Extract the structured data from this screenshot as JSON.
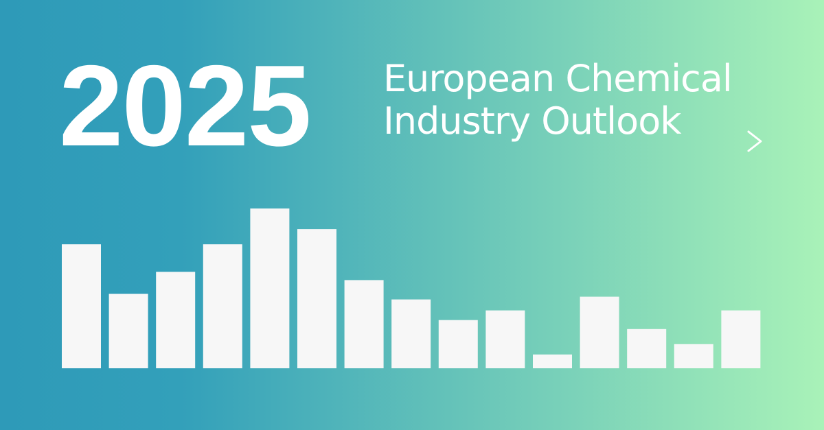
{
  "header": {
    "year": "2025",
    "title_line1": "European Chemical",
    "title_line2": "Industry Outlook",
    "link_icon": "chevron-right-icon"
  },
  "colors": {
    "gradient_start": "#2e9ab8",
    "gradient_end": "#a9f2b8",
    "bar_fill": "#f7f7f7",
    "text": "#ffffff"
  },
  "chart_data": {
    "type": "bar",
    "values": [
      180,
      108,
      140,
      180,
      232,
      202,
      128,
      100,
      70,
      84,
      20,
      104,
      57,
      35,
      84
    ],
    "ylim": [
      0,
      232
    ],
    "grid": false,
    "legend": "none"
  }
}
